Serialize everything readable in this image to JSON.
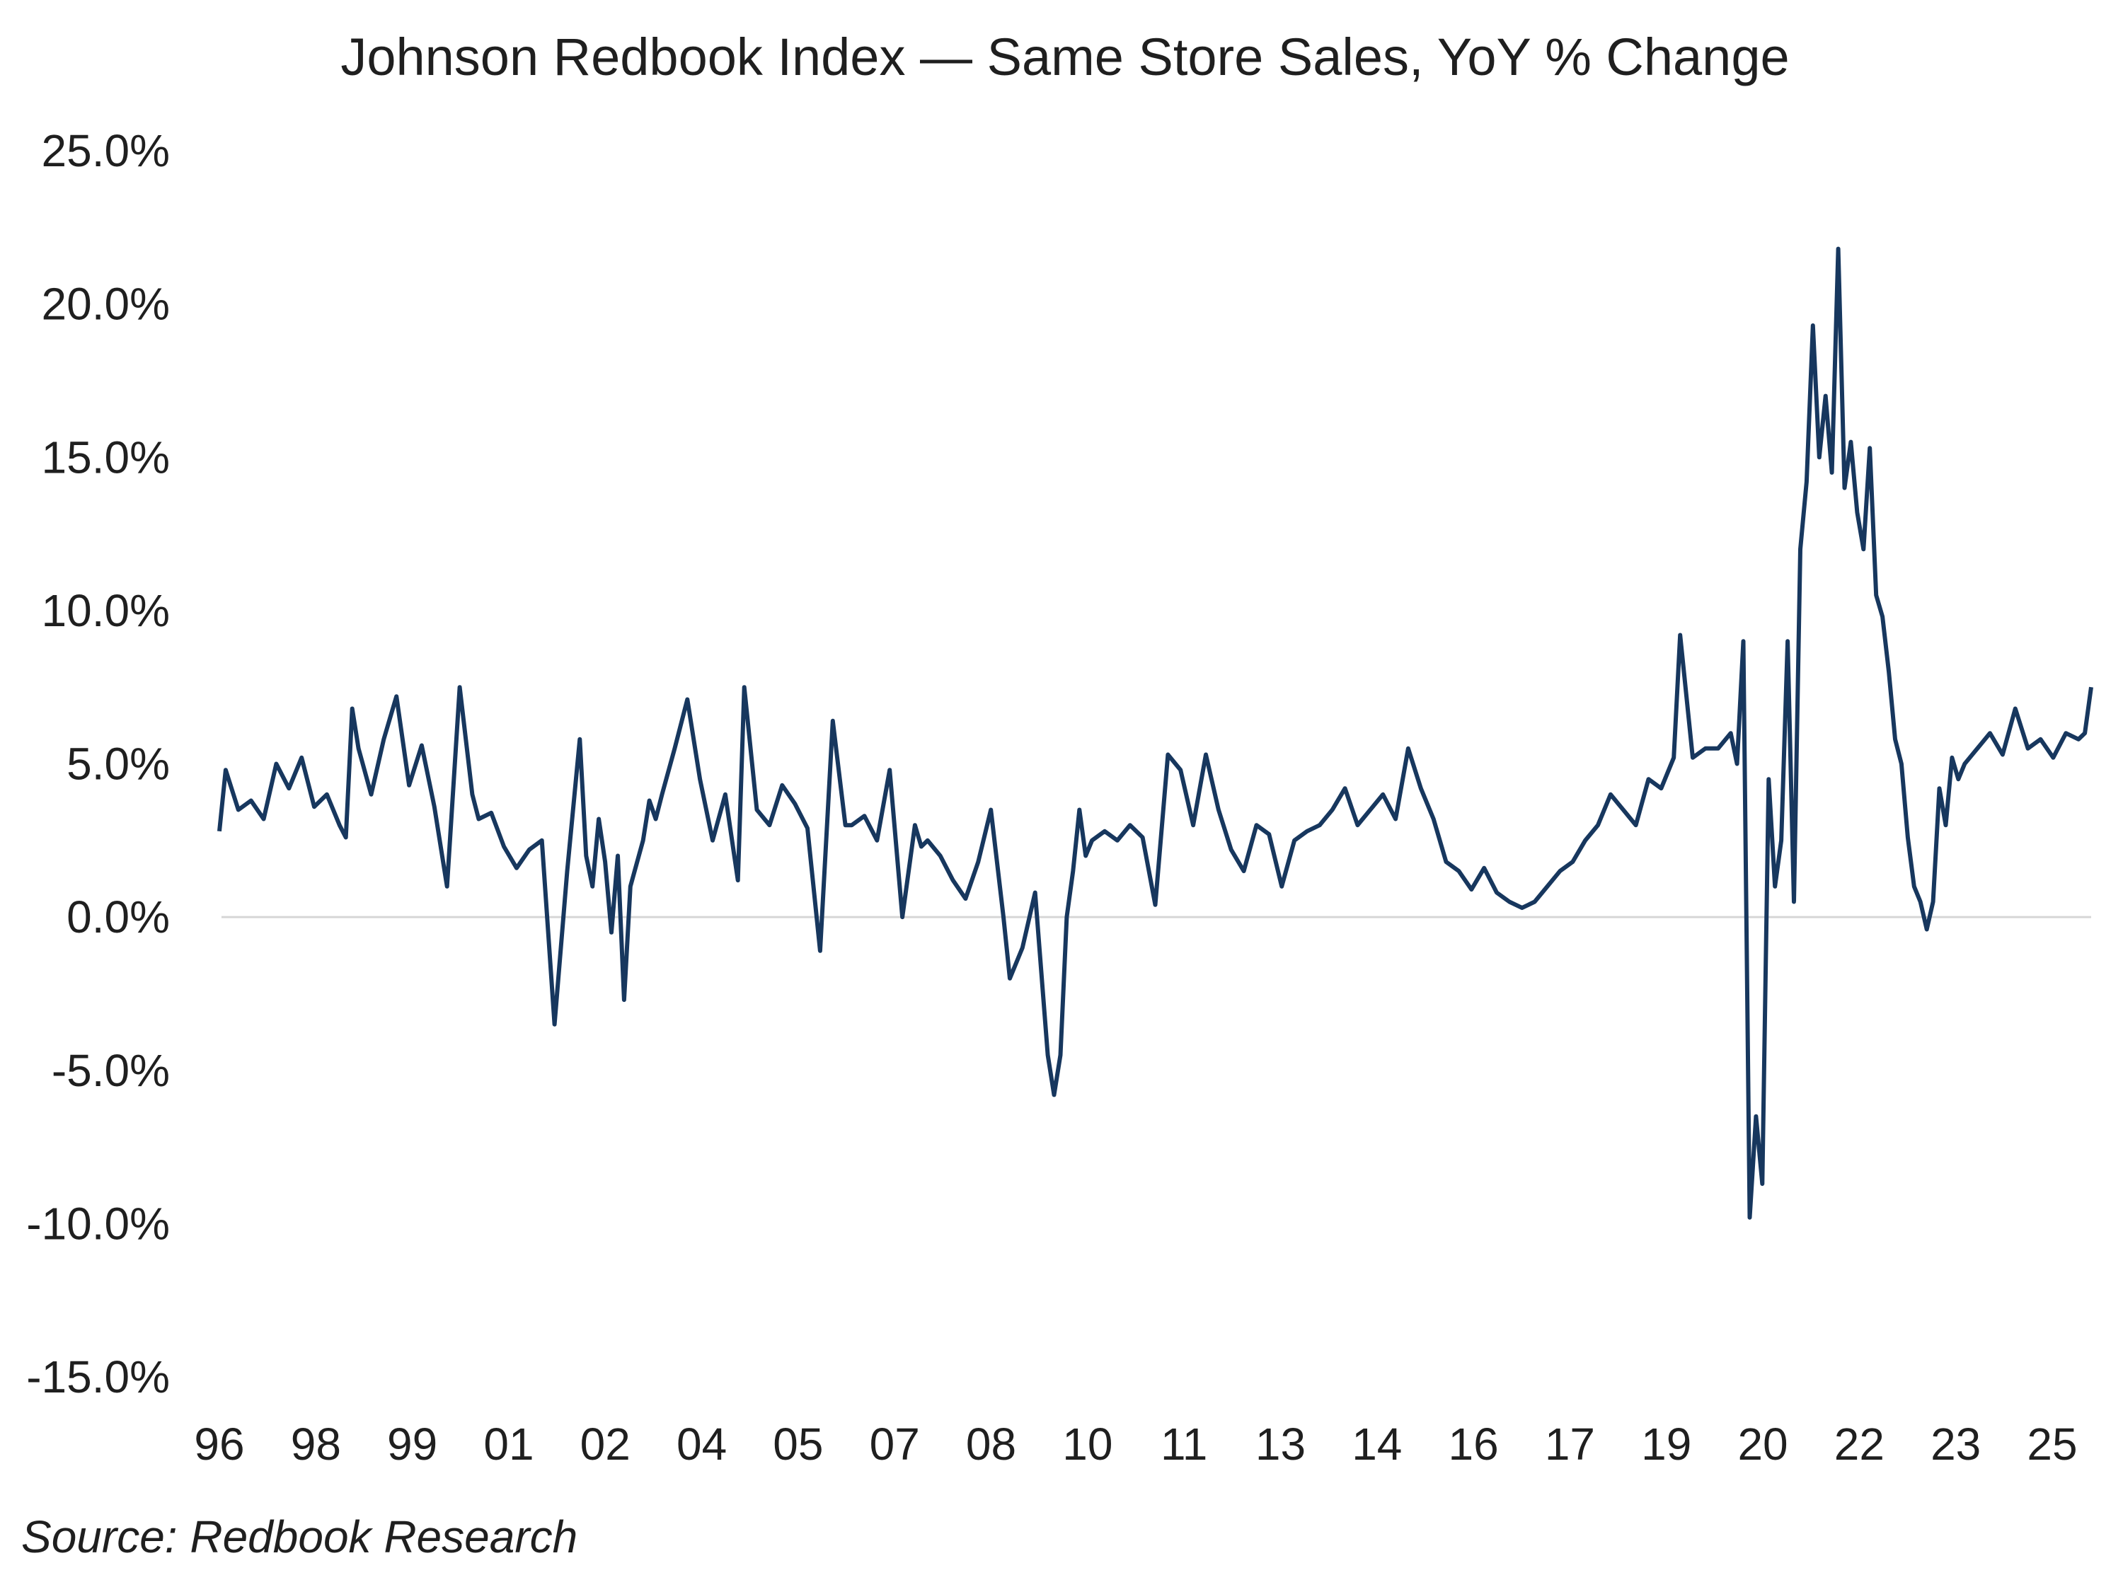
{
  "chart_data": {
    "type": "line",
    "title": "Johnson Redbook Index —  Same Store Sales, YoY % Change",
    "source": "Source: Redbook Research",
    "xlabel": "",
    "ylabel": "",
    "ylim": [
      -15,
      25
    ],
    "xlim": [
      1996.0,
      2025.6
    ],
    "y_ticks": [
      25,
      20,
      15,
      10,
      5,
      0,
      -5,
      -10,
      -15
    ],
    "y_tick_labels": [
      "25.0%",
      "20.0%",
      "15.0%",
      "10.0%",
      "5.0%",
      "0.0%",
      "-5.0%",
      "-10.0%",
      "-15.0%"
    ],
    "x_tick_labels": [
      "96",
      "98",
      "99",
      "01",
      "02",
      "04",
      "05",
      "07",
      "08",
      "10",
      "11",
      "13",
      "14",
      "16",
      "17",
      "19",
      "20",
      "22",
      "23",
      "25"
    ],
    "zero_line": true,
    "line_color": "#17375E",
    "series": [
      {
        "name": "Same Store Sales, YoY % Change",
        "x": [
          1996.0,
          1996.1,
          1996.3,
          1996.5,
          1996.7,
          1996.9,
          1997.1,
          1997.3,
          1997.5,
          1997.7,
          1997.9,
          1998.0,
          1998.1,
          1998.2,
          1998.4,
          1998.6,
          1998.8,
          1999.0,
          1999.2,
          1999.4,
          1999.6,
          1999.8,
          2000.0,
          2000.1,
          2000.3,
          2000.5,
          2000.7,
          2000.9,
          2001.1,
          2001.3,
          2001.5,
          2001.7,
          2001.8,
          2001.9,
          2002.0,
          2002.1,
          2002.2,
          2002.3,
          2002.4,
          2002.5,
          2002.7,
          2002.8,
          2002.9,
          2003.0,
          2003.2,
          2003.4,
          2003.6,
          2003.8,
          2004.0,
          2004.2,
          2004.3,
          2004.5,
          2004.7,
          2004.9,
          2005.1,
          2005.3,
          2005.5,
          2005.7,
          2005.9,
          2006.0,
          2006.2,
          2006.4,
          2006.6,
          2006.8,
          2007.0,
          2007.1,
          2007.2,
          2007.4,
          2007.6,
          2007.8,
          2008.0,
          2008.2,
          2008.4,
          2008.5,
          2008.7,
          2008.9,
          2009.1,
          2009.2,
          2009.3,
          2009.4,
          2009.5,
          2009.6,
          2009.7,
          2009.8,
          2010.0,
          2010.2,
          2010.4,
          2010.6,
          2010.8,
          2011.0,
          2011.2,
          2011.4,
          2011.6,
          2011.8,
          2012.0,
          2012.2,
          2012.4,
          2012.6,
          2012.8,
          2013.0,
          2013.2,
          2013.4,
          2013.6,
          2013.8,
          2014.0,
          2014.2,
          2014.4,
          2014.6,
          2014.8,
          2015.0,
          2015.2,
          2015.4,
          2015.6,
          2015.8,
          2016.0,
          2016.2,
          2016.4,
          2016.6,
          2016.8,
          2017.0,
          2017.2,
          2017.4,
          2017.6,
          2017.8,
          2018.0,
          2018.2,
          2018.4,
          2018.6,
          2018.8,
          2019.0,
          2019.1,
          2019.3,
          2019.5,
          2019.7,
          2019.9,
          2020.0,
          2020.1,
          2020.2,
          2020.3,
          2020.4,
          2020.5,
          2020.6,
          2020.7,
          2020.8,
          2020.9,
          2021.0,
          2021.1,
          2021.2,
          2021.3,
          2021.4,
          2021.5,
          2021.6,
          2021.7,
          2021.8,
          2021.9,
          2022.0,
          2022.1,
          2022.2,
          2022.3,
          2022.4,
          2022.5,
          2022.6,
          2022.7,
          2022.8,
          2022.9,
          2023.0,
          2023.1,
          2023.2,
          2023.3,
          2023.4,
          2023.5,
          2023.6,
          2023.8,
          2024.0,
          2024.2,
          2024.4,
          2024.6,
          2024.8,
          2025.0,
          2025.2,
          2025.4,
          2025.5,
          2025.6
        ],
        "values": [
          2.8,
          4.8,
          3.5,
          3.8,
          3.2,
          5.0,
          4.2,
          5.2,
          3.6,
          4.0,
          3.0,
          2.6,
          6.8,
          5.5,
          4.0,
          5.8,
          7.2,
          4.3,
          5.6,
          3.6,
          1.0,
          7.5,
          4.0,
          3.2,
          3.4,
          2.3,
          1.6,
          2.2,
          2.5,
          -3.5,
          1.5,
          5.8,
          2.0,
          1.0,
          3.2,
          1.8,
          -0.5,
          2.0,
          -2.7,
          1.0,
          2.5,
          3.8,
          3.2,
          4.0,
          5.5,
          7.1,
          4.5,
          2.5,
          4.0,
          1.2,
          7.5,
          3.5,
          3.0,
          4.3,
          3.7,
          2.9,
          -1.1,
          6.4,
          3.0,
          3.0,
          3.3,
          2.5,
          4.8,
          0.0,
          3.0,
          2.3,
          2.5,
          2.0,
          1.2,
          0.6,
          1.8,
          3.5,
          0.0,
          -2.0,
          -1.0,
          0.8,
          -4.5,
          -5.8,
          -4.5,
          0.0,
          1.5,
          3.5,
          2.0,
          2.5,
          2.8,
          2.5,
          3.0,
          2.6,
          0.4,
          5.3,
          4.8,
          3.0,
          5.3,
          3.5,
          2.2,
          1.5,
          3.0,
          2.7,
          1.0,
          2.5,
          2.8,
          3.0,
          3.5,
          4.2,
          3.0,
          3.5,
          4.0,
          3.2,
          5.5,
          4.2,
          3.2,
          1.8,
          1.5,
          0.9,
          1.6,
          0.8,
          0.5,
          0.3,
          0.5,
          1.0,
          1.5,
          1.8,
          2.5,
          3.0,
          4.0,
          3.5,
          3.0,
          4.5,
          4.2,
          5.2,
          9.2,
          5.2,
          5.5,
          5.5,
          6.0,
          5.0,
          9.0,
          -9.8,
          -6.5,
          -8.7,
          4.5,
          1.0,
          2.5,
          9.0,
          0.5,
          12.0,
          14.2,
          19.3,
          15.0,
          17.0,
          14.5,
          21.8,
          14.0,
          15.5,
          13.2,
          12.0,
          15.3,
          10.5,
          9.8,
          8.0,
          5.8,
          5.0,
          2.6,
          1.0,
          0.5,
          -0.4,
          0.5,
          4.2,
          3.0,
          5.2,
          4.5,
          5.0,
          5.5,
          6.0,
          5.3,
          6.8,
          5.5,
          5.8,
          5.2,
          6.0,
          5.8,
          6.0,
          7.5
        ]
      }
    ]
  }
}
